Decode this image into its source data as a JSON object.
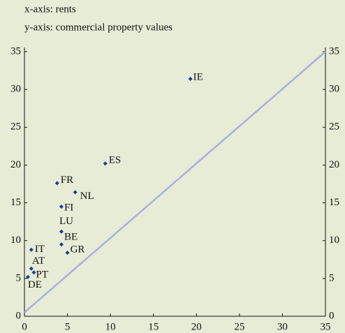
{
  "chart_data": {
    "type": "scatter",
    "subtitle": "x-axis: rents",
    "title": "y-axis: commercial property values",
    "labels": [
      "IE",
      "ES",
      "FR",
      "NL",
      "FI",
      "LU",
      "BE",
      "GR",
      "IT",
      "AT",
      "PT",
      "DE"
    ],
    "x": [
      19.3,
      9.4,
      3.8,
      5.9,
      4.3,
      4.3,
      4.3,
      5.0,
      0.8,
      0.8,
      1.1,
      0.4
    ],
    "y": [
      31.4,
      20.2,
      17.6,
      16.4,
      14.5,
      11.2,
      9.5,
      8.4,
      8.8,
      6.3,
      5.8,
      5.2
    ],
    "color": "#1f3a93",
    "diagonal": {
      "x": [
        0,
        35
      ],
      "y": [
        0.5,
        35
      ],
      "color": "#a9b0dc"
    },
    "xlim": [
      0,
      35
    ],
    "ylim": [
      0,
      35
    ],
    "xticks": [
      0,
      5,
      10,
      15,
      20,
      25,
      30,
      35
    ],
    "yticks": [
      0,
      5,
      10,
      15,
      20,
      25,
      30,
      35
    ]
  }
}
